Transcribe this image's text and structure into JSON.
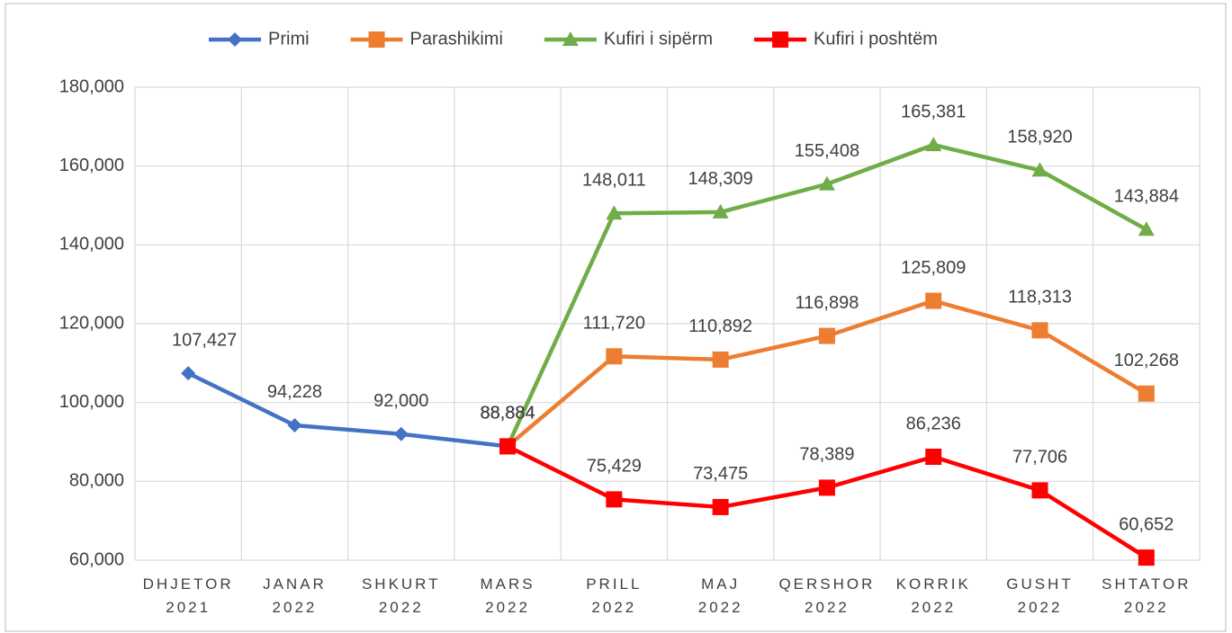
{
  "chart_data": {
    "type": "line",
    "categories": [
      "DHJETOR 2021",
      "JANAR 2022",
      "SHKURT 2022",
      "MARS 2022",
      "PRILL 2022",
      "MAJ 2022",
      "QERSHOR 2022",
      "KORRIK 2022",
      "GUSHT 2022",
      "SHTATOR 2022"
    ],
    "series": [
      {
        "name": "Primi",
        "color": "#4472c4",
        "marker": "diamond",
        "values": [
          107427,
          94228,
          92000,
          88884,
          null,
          null,
          null,
          null,
          null,
          null
        ],
        "value_labels": [
          "107,427",
          "94,228",
          "92,000",
          "88,884",
          null,
          null,
          null,
          null,
          null,
          null
        ]
      },
      {
        "name": "Parashikimi",
        "color": "#ed7d31",
        "marker": "square",
        "values": [
          null,
          null,
          null,
          88884,
          111720,
          110892,
          116898,
          125809,
          118313,
          102268
        ],
        "value_labels": [
          null,
          null,
          null,
          "88,884",
          "111,720",
          "110,892",
          "116,898",
          "125,809",
          "118,313",
          "102,268"
        ]
      },
      {
        "name": "Kufiri i sipërm",
        "color": "#70ad47",
        "marker": "triangle",
        "values": [
          null,
          null,
          null,
          88884,
          148011,
          148309,
          155408,
          165381,
          158920,
          143884
        ],
        "value_labels": [
          null,
          null,
          null,
          "88,884",
          "148,011",
          "148,309",
          "155,408",
          "165,381",
          "158,920",
          "143,884"
        ]
      },
      {
        "name": "Kufiri i poshtëm",
        "color": "#ff0000",
        "marker": "square",
        "values": [
          null,
          null,
          null,
          88884,
          75429,
          73475,
          78389,
          86236,
          77706,
          60652
        ],
        "value_labels": [
          null,
          null,
          null,
          "88,884",
          "75,429",
          "73,475",
          "78,389",
          "86,236",
          "77,706",
          "60,652"
        ]
      }
    ],
    "ylim": [
      60000,
      180000
    ],
    "yticks": [
      {
        "value": 60000,
        "label": "60,000"
      },
      {
        "value": 80000,
        "label": "80,000"
      },
      {
        "value": 100000,
        "label": "100,000"
      },
      {
        "value": 120000,
        "label": "120,000"
      },
      {
        "value": 140000,
        "label": "140,000"
      },
      {
        "value": 160000,
        "label": "160,000"
      },
      {
        "value": 180000,
        "label": "180,000"
      }
    ],
    "grid": true,
    "legend": "top"
  }
}
